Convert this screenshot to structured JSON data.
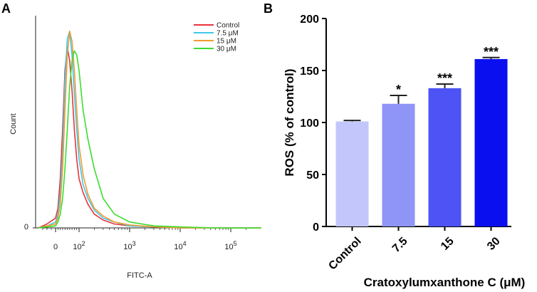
{
  "panel_a_label": "A",
  "panel_b_label": "B",
  "chart_data": [
    {
      "type": "line",
      "subtype": "flow-cytometry-histogram",
      "panel": "A",
      "xlabel": "FITC-A",
      "ylabel": "Count",
      "x_scale": "log",
      "xlim": [
        -40,
        400000
      ],
      "x_ticks": [
        {
          "value": 0,
          "label": "0"
        },
        {
          "value": 100,
          "base": "10",
          "exp": "2"
        },
        {
          "value": 1000,
          "base": "10",
          "exp": "3"
        },
        {
          "value": 10000,
          "base": "10",
          "exp": "4"
        },
        {
          "value": 100000,
          "base": "10",
          "exp": "5"
        }
      ],
      "y_ticks": [
        {
          "value": 0,
          "label": "0"
        }
      ],
      "ylim": [
        0,
        1.05
      ],
      "legend_position": "top-right",
      "series": [
        {
          "name": "Control",
          "color": "#e8333a",
          "x": [
            -40,
            -20,
            0,
            10,
            20,
            30,
            40,
            50,
            60,
            70,
            80,
            90,
            100,
            120,
            150,
            200,
            300,
            500,
            1000,
            3000,
            10000,
            50000,
            400000
          ],
          "y": [
            0,
            0.02,
            0.05,
            0.1,
            0.25,
            0.5,
            0.8,
            0.92,
            0.85,
            0.7,
            0.5,
            0.35,
            0.25,
            0.18,
            0.12,
            0.07,
            0.04,
            0.02,
            0.01,
            0.005,
            0,
            0,
            0
          ]
        },
        {
          "name": "7.5 μM",
          "color": "#3ec9e6",
          "x": [
            -40,
            -20,
            0,
            10,
            20,
            30,
            40,
            50,
            60,
            70,
            80,
            90,
            100,
            120,
            150,
            200,
            300,
            500,
            1000,
            3000,
            10000,
            50000,
            400000
          ],
          "y": [
            0,
            0.01,
            0.03,
            0.07,
            0.18,
            0.4,
            0.75,
            0.96,
            1.0,
            0.88,
            0.68,
            0.5,
            0.35,
            0.22,
            0.15,
            0.09,
            0.05,
            0.03,
            0.01,
            0.005,
            0,
            0,
            0
          ]
        },
        {
          "name": "15 μM",
          "color": "#f29a2e",
          "x": [
            -40,
            -20,
            0,
            10,
            20,
            30,
            40,
            50,
            60,
            70,
            80,
            90,
            100,
            120,
            150,
            200,
            300,
            500,
            1000,
            3000,
            10000,
            50000,
            400000
          ],
          "y": [
            0,
            0.01,
            0.02,
            0.05,
            0.12,
            0.3,
            0.6,
            0.88,
            1.0,
            0.95,
            0.8,
            0.6,
            0.42,
            0.27,
            0.17,
            0.1,
            0.06,
            0.03,
            0.015,
            0.005,
            0,
            0,
            0
          ]
        },
        {
          "name": "30 μM",
          "color": "#3ddc2f",
          "x": [
            -40,
            -20,
            0,
            10,
            20,
            30,
            40,
            50,
            60,
            70,
            80,
            90,
            100,
            120,
            150,
            200,
            300,
            500,
            1000,
            3000,
            10000,
            50000,
            400000
          ],
          "y": [
            0,
            0.005,
            0.01,
            0.03,
            0.07,
            0.15,
            0.3,
            0.5,
            0.72,
            0.85,
            0.9,
            0.88,
            0.8,
            0.6,
            0.45,
            0.3,
            0.15,
            0.07,
            0.03,
            0.01,
            0.005,
            0,
            0
          ]
        }
      ]
    },
    {
      "type": "bar",
      "panel": "B",
      "categories": [
        "Control",
        "7.5",
        "15",
        "30"
      ],
      "values": [
        101,
        118,
        133,
        161
      ],
      "errors": [
        1,
        8,
        4,
        1.5
      ],
      "significance": [
        "",
        "*",
        "***",
        "***"
      ],
      "colors": [
        "#c3c6fb",
        "#8f94f7",
        "#4d53f4",
        "#0a0ff0"
      ],
      "ylabel": "ROS (% of control)",
      "xlabel": "Cratoxylumxanthone C (μM)",
      "ylim": [
        0,
        200
      ],
      "y_ticks": [
        0,
        50,
        100,
        150,
        200
      ],
      "grid": false
    }
  ]
}
